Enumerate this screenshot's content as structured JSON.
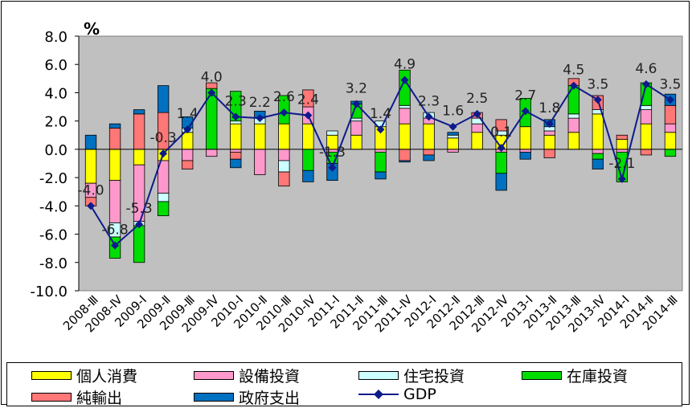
{
  "chart_data": {
    "type": "bar",
    "stacked": true,
    "overlay_line": "GDP",
    "unit_label": "%",
    "ylim": [
      -10,
      8
    ],
    "yticks": [
      "8.0",
      "6.0",
      "4.0",
      "2.0",
      "0.0",
      "-2.0",
      "-4.0",
      "-6.0",
      "-8.0",
      "-10.0"
    ],
    "categories": [
      "2008-Ⅲ",
      "2008-Ⅳ",
      "2009-Ⅰ",
      "2009-Ⅱ",
      "2009-Ⅲ",
      "2009-Ⅳ",
      "2010-Ⅰ",
      "2010-Ⅱ",
      "2010-Ⅲ",
      "2010-Ⅳ",
      "2011-Ⅰ",
      "2011-Ⅱ",
      "2011-Ⅲ",
      "2011-Ⅳ",
      "2012-Ⅰ",
      "2012-Ⅱ",
      "2012-Ⅲ",
      "2012-Ⅳ",
      "2013-Ⅰ",
      "2013-Ⅱ",
      "2013-Ⅲ",
      "2013-Ⅳ",
      "2014-Ⅰ",
      "2014-Ⅱ",
      "2014-Ⅲ"
    ],
    "series": [
      {
        "name": "個人消費",
        "color": "#ffff00",
        "values": [
          -2.4,
          -2.2,
          -1.1,
          -0.8,
          1.2,
          0.0,
          1.8,
          1.8,
          1.8,
          1.8,
          1.0,
          1.0,
          1.6,
          1.8,
          1.8,
          0.8,
          1.2,
          1.0,
          1.6,
          1.0,
          1.2,
          2.5,
          0.7,
          1.8,
          1.2
        ]
      },
      {
        "name": "設備投資",
        "color": "#ff99cc",
        "values": [
          -1.0,
          -3.0,
          -4.0,
          -2.3,
          -0.8,
          -0.5,
          -0.2,
          -1.8,
          -0.8,
          1.2,
          -0.2,
          1.0,
          -0.2,
          1.1,
          0.4,
          -0.2,
          0.6,
          -0.2,
          -0.2,
          0.3,
          1.0,
          -0.3,
          -0.2,
          1.0,
          0.6
        ]
      },
      {
        "name": "住宅投資",
        "color": "#ccffff",
        "values": [
          0.0,
          -1.0,
          -0.3,
          -0.6,
          0.3,
          0.0,
          0.2,
          0.4,
          -0.8,
          0.0,
          0.3,
          0.2,
          0.4,
          0.2,
          0.4,
          0.2,
          0.4,
          0.3,
          0.0,
          0.3,
          0.3,
          0.3,
          0.0,
          0.3,
          0.0
        ]
      },
      {
        "name": "在庫投資",
        "color": "#00dd00",
        "values": [
          0.0,
          -1.5,
          -2.6,
          -1.0,
          0.0,
          4.3,
          2.1,
          0.0,
          2.0,
          -1.5,
          -0.8,
          1.0,
          -1.4,
          2.5,
          0.0,
          0.0,
          0.0,
          -1.5,
          2.0,
          0.0,
          2.0,
          -0.4,
          -2.1,
          1.6,
          -0.5
        ]
      },
      {
        "name": "純輸出",
        "color": "#ff7777",
        "values": [
          -0.6,
          1.5,
          2.5,
          2.6,
          -0.6,
          0.4,
          -0.5,
          0.0,
          -1.0,
          1.2,
          0.0,
          0.0,
          0.0,
          -0.8,
          -0.4,
          0.0,
          0.4,
          0.8,
          0.0,
          -0.6,
          0.5,
          1.0,
          0.3,
          -0.4,
          1.3
        ]
      },
      {
        "name": "政府支出",
        "color": "#0070c0",
        "values": [
          1.0,
          0.3,
          0.3,
          1.9,
          0.8,
          0.0,
          -0.6,
          0.5,
          0.0,
          -0.8,
          -1.2,
          0.2,
          -0.5,
          -0.1,
          -0.4,
          0.2,
          0.0,
          -1.2,
          -0.5,
          0.5,
          0.0,
          -0.7,
          0.0,
          0.0,
          0.8
        ]
      }
    ],
    "line": {
      "name": "GDP",
      "color": "#0d1b8a",
      "values": [
        -4.0,
        -6.8,
        -5.3,
        -0.3,
        1.4,
        4.0,
        2.3,
        2.2,
        2.6,
        2.4,
        -1.3,
        3.2,
        1.4,
        4.9,
        2.3,
        1.6,
        2.5,
        0.1,
        2.7,
        1.8,
        4.5,
        3.5,
        -2.1,
        4.6,
        3.5
      ]
    },
    "data_labels": [
      "-4.0",
      "-6.8",
      "-5.3",
      "-0.3",
      "1.4",
      "4.0",
      "2.3",
      "2.2",
      "2.6",
      "2.4",
      "-1.3",
      "3.2",
      "1.4",
      "4.9",
      "2.3",
      "1.6",
      "2.5",
      "0.1",
      "2.7",
      "1.8",
      "4.5",
      "3.5",
      "-2.1",
      "4.6",
      "3.5"
    ],
    "legend": [
      {
        "label": "個人消費",
        "color": "#ffff00",
        "kind": "bar"
      },
      {
        "label": "設備投資",
        "color": "#ff99cc",
        "kind": "bar"
      },
      {
        "label": "住宅投資",
        "color": "#ccffff",
        "kind": "bar"
      },
      {
        "label": "在庫投資",
        "color": "#00dd00",
        "kind": "bar"
      },
      {
        "label": "純輸出",
        "color": "#ff7777",
        "kind": "bar"
      },
      {
        "label": "政府支出",
        "color": "#0070c0",
        "kind": "bar"
      },
      {
        "label": "GDP",
        "color": "#0d1b8a",
        "kind": "line"
      }
    ],
    "legend_position": "bottom",
    "plot_background": "#c0c0c0",
    "grid": false
  }
}
